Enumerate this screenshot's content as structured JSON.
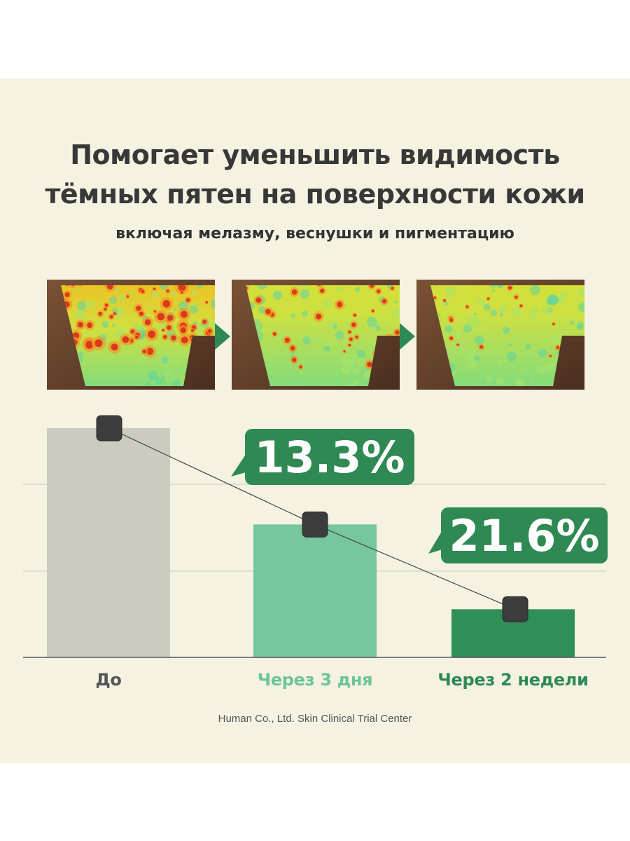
{
  "header": {
    "title_line1": "Помогает уменьшить видимость",
    "title_line2": "тёмных пятен на поверхности кожи",
    "subtitle": "включая мелазму, веснушки и пигментацию"
  },
  "colors": {
    "background": "#f5f2e2",
    "bar_before": "#cbcbc0",
    "bar_3days": "#76c79e",
    "bar_2weeks": "#2e8f57",
    "callout": "#2e8a52",
    "marker": "#3c3c3c",
    "label_before": "#555555",
    "label_3days": "#6cc596",
    "label_2weeks": "#2e8a52"
  },
  "images": [
    {
      "name": "skin-scan-before",
      "spot_intensity": 1.0
    },
    {
      "name": "skin-scan-3-days",
      "spot_intensity": 0.6
    },
    {
      "name": "skin-scan-2-weeks",
      "spot_intensity": 0.3
    }
  ],
  "chart_data": {
    "type": "bar",
    "categories": [
      "До",
      "Через 3 дня",
      "Через 2 недели"
    ],
    "values": [
      100,
      58,
      21
    ],
    "trend_line": true,
    "ylim": [
      0,
      106
    ],
    "grid": true,
    "annotations": [
      {
        "category": "Через 3 дня",
        "text": "13.3%"
      },
      {
        "category": "Через 2 недели",
        "text": "21.6%"
      }
    ],
    "title": "",
    "xlabel": "",
    "ylabel": ""
  },
  "footer": {
    "source": "Human Co., Ltd. Skin Clinical Trial Center"
  }
}
